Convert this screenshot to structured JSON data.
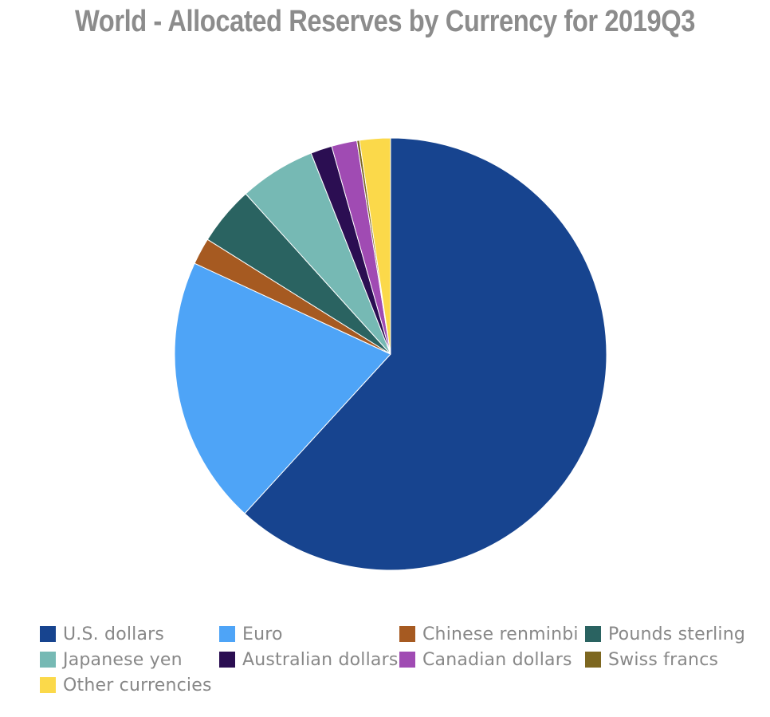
{
  "chart_data": {
    "type": "pie",
    "title": "World - Allocated Reserves by Currency for 2019Q3",
    "slices": [
      {
        "label": "U.S. dollars",
        "value": 61.8,
        "color": "#17448f"
      },
      {
        "label": "Euro",
        "value": 20.1,
        "color": "#4ea4f7"
      },
      {
        "label": "Chinese renminbi",
        "value": 2.0,
        "color": "#a65a21"
      },
      {
        "label": "Pounds sterling",
        "value": 4.4,
        "color": "#2a6361"
      },
      {
        "label": "Japanese yen",
        "value": 5.7,
        "color": "#76b9b4"
      },
      {
        "label": "Australian dollars",
        "value": 1.6,
        "color": "#2b0e52"
      },
      {
        "label": "Canadian dollars",
        "value": 1.9,
        "color": "#a04bb3"
      },
      {
        "label": "Swiss francs",
        "value": 0.2,
        "color": "#7d6720"
      },
      {
        "label": "Other currencies",
        "value": 2.3,
        "color": "#fbd94a"
      }
    ],
    "legend_position": "bottom"
  }
}
